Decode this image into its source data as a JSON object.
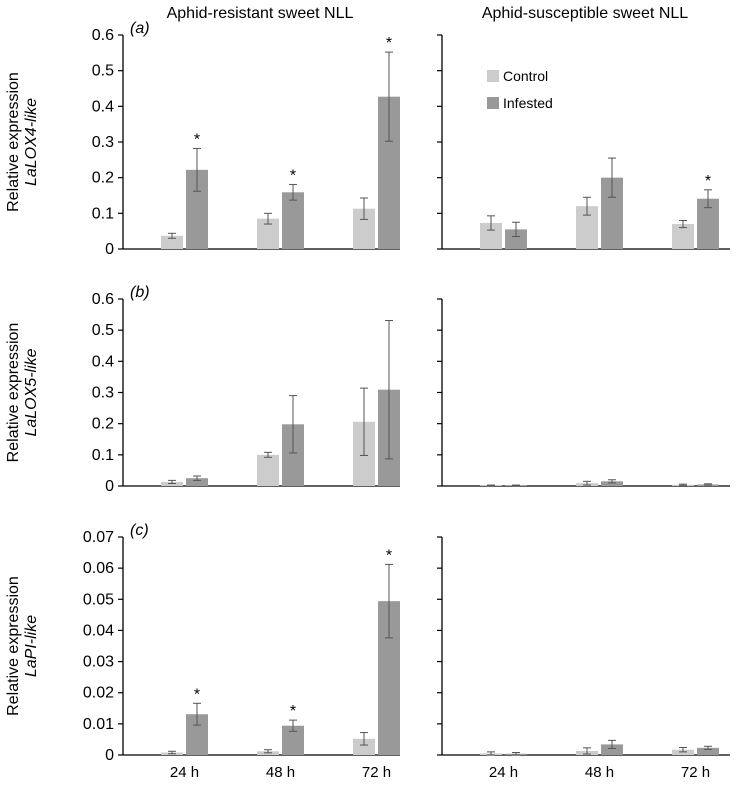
{
  "column_titles": [
    "Aphid-resistant sweet NLL",
    "Aphid-susceptible sweet NLL"
  ],
  "colors": {
    "control": "#cccccc",
    "infested": "#999999",
    "axis": "#000000",
    "error": "#555555"
  },
  "legend": {
    "control": "Control",
    "infested": "Infested"
  },
  "chart_data": [
    {
      "type": "bar",
      "panel": "(a)",
      "ylabel_line1": "Relative expression",
      "ylabel_gene": "LaLOX4-like",
      "ylim": [
        0,
        0.6
      ],
      "yticks": [
        "0",
        "0.1",
        "0.2",
        "0.3",
        "0.4",
        "0.5",
        "0.6"
      ],
      "groups": [
        {
          "line": "Aphid-resistant sweet NLL",
          "categories": [
            "24 h",
            "48 h",
            "72 h"
          ],
          "series": [
            {
              "name": "Control",
              "values": [
                0.037,
                0.085,
                0.113
              ],
              "errors": [
                0.007,
                0.015,
                0.03
              ],
              "sig": [
                false,
                false,
                false
              ]
            },
            {
              "name": "Infested",
              "values": [
                0.222,
                0.159,
                0.427
              ],
              "errors": [
                0.06,
                0.022,
                0.125
              ],
              "sig": [
                true,
                true,
                true
              ]
            }
          ]
        },
        {
          "line": "Aphid-susceptible sweet NLL",
          "categories": [
            "24 h",
            "48 h",
            "72 h"
          ],
          "series": [
            {
              "name": "Control",
              "values": [
                0.073,
                0.12,
                0.07
              ],
              "errors": [
                0.02,
                0.025,
                0.01
              ],
              "sig": [
                false,
                false,
                false
              ]
            },
            {
              "name": "Infested",
              "values": [
                0.055,
                0.2,
                0.141
              ],
              "errors": [
                0.02,
                0.055,
                0.025
              ],
              "sig": [
                false,
                false,
                true
              ]
            }
          ]
        }
      ]
    },
    {
      "type": "bar",
      "panel": "(b)",
      "ylabel_line1": "Relative expression",
      "ylabel_gene": "LaLOX5-like",
      "ylim": [
        0,
        0.6
      ],
      "yticks": [
        "0",
        "0.1",
        "0.2",
        "0.3",
        "0.4",
        "0.5",
        "0.6"
      ],
      "groups": [
        {
          "line": "Aphid-resistant sweet NLL",
          "categories": [
            "24 h",
            "48 h",
            "72 h"
          ],
          "series": [
            {
              "name": "Control",
              "values": [
                0.013,
                0.1,
                0.206
              ],
              "errors": [
                0.005,
                0.008,
                0.108
              ],
              "sig": [
                false,
                false,
                false
              ]
            },
            {
              "name": "Infested",
              "values": [
                0.025,
                0.198,
                0.309
              ],
              "errors": [
                0.007,
                0.092,
                0.222
              ],
              "sig": [
                false,
                false,
                false
              ]
            }
          ]
        },
        {
          "line": "Aphid-susceptible sweet NLL",
          "categories": [
            "24 h",
            "48 h",
            "72 h"
          ],
          "series": [
            {
              "name": "Control",
              "values": [
                0.002,
                0.009,
                0.004
              ],
              "errors": [
                0.001,
                0.006,
                0.002
              ],
              "sig": [
                false,
                false,
                false
              ]
            },
            {
              "name": "Infested",
              "values": [
                0.002,
                0.015,
                0.005
              ],
              "errors": [
                0.001,
                0.005,
                0.002
              ],
              "sig": [
                false,
                false,
                false
              ]
            }
          ]
        }
      ]
    },
    {
      "type": "bar",
      "panel": "(c)",
      "ylabel_line1": "Relative expression",
      "ylabel_gene": "LaPI-like",
      "ylim": [
        0,
        0.07
      ],
      "yticks": [
        "0",
        "0.01",
        "0.02",
        "0.03",
        "0.04",
        "0.05",
        "0.06",
        "0.07"
      ],
      "groups": [
        {
          "line": "Aphid-resistant sweet NLL",
          "categories": [
            "24 h",
            "48 h",
            "72 h"
          ],
          "series": [
            {
              "name": "Control",
              "values": [
                0.0008,
                0.0012,
                0.0052
              ],
              "errors": [
                0.0004,
                0.0005,
                0.002
              ],
              "sig": [
                false,
                false,
                false
              ]
            },
            {
              "name": "Infested",
              "values": [
                0.0131,
                0.0094,
                0.0494
              ],
              "errors": [
                0.0035,
                0.0018,
                0.0118
              ],
              "sig": [
                true,
                true,
                true
              ]
            }
          ]
        },
        {
          "line": "Aphid-susceptible sweet NLL",
          "categories": [
            "24 h",
            "48 h",
            "72 h"
          ],
          "series": [
            {
              "name": "Control",
              "values": [
                0.0005,
                0.0013,
                0.0017
              ],
              "errors": [
                0.0005,
                0.001,
                0.0007
              ],
              "sig": [
                false,
                false,
                false
              ]
            },
            {
              "name": "Infested",
              "values": [
                0.0004,
                0.0034,
                0.0023
              ],
              "errors": [
                0.0004,
                0.0013,
                0.0005
              ],
              "sig": [
                false,
                false,
                false
              ]
            }
          ]
        }
      ]
    }
  ]
}
